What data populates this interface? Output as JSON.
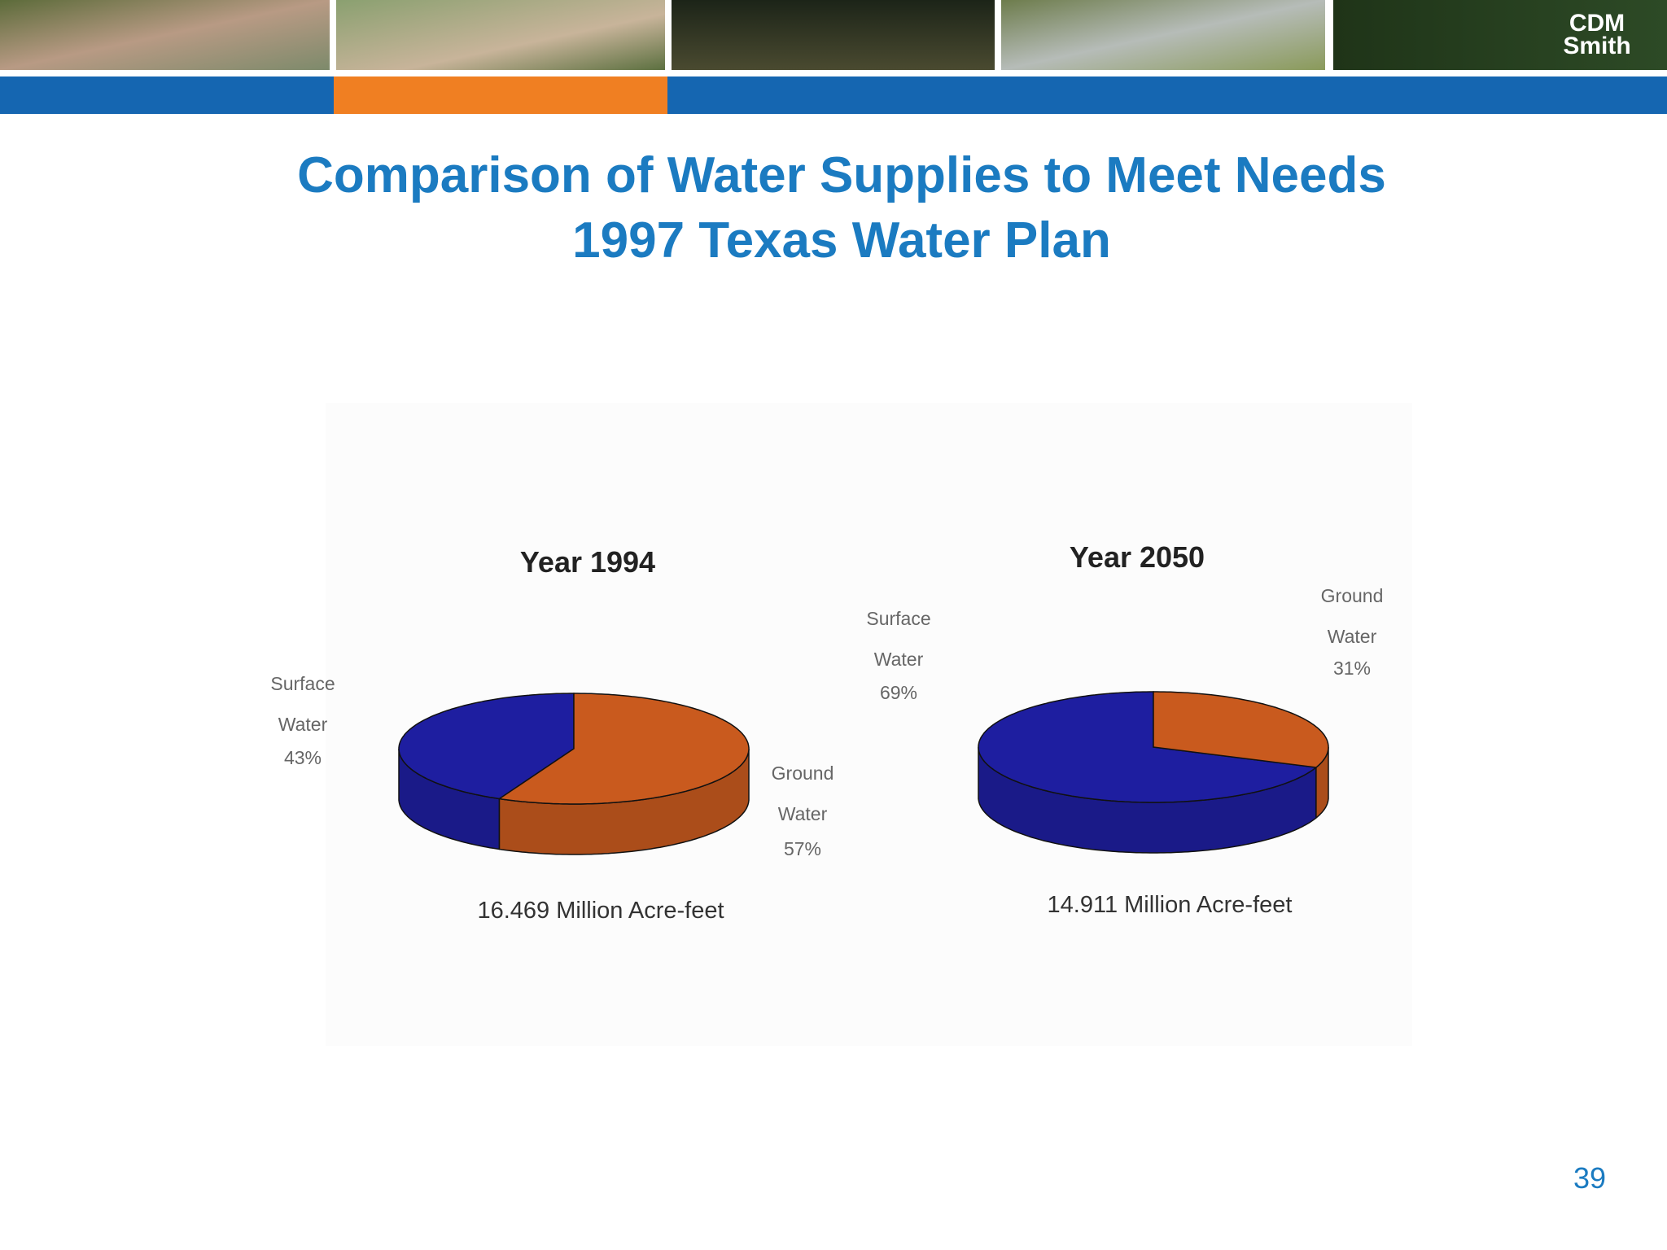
{
  "slide": {
    "title": [
      "Comparison of Water Supplies to Meet Needs",
      "1997 Texas Water Plan"
    ],
    "logo": [
      "CDM",
      "Smith"
    ],
    "page_number": "39"
  },
  "chart_data": [
    {
      "type": "pie",
      "title": "Year 1994",
      "categories": [
        "Surface Water",
        "Ground Water"
      ],
      "values": [
        43,
        57
      ],
      "value_labels": [
        "43%",
        "57%"
      ],
      "colors": [
        "#1e1ea0",
        "#c95a1e"
      ],
      "caption": "16.469 Million Acre-feet"
    },
    {
      "type": "pie",
      "title": "Year 2050",
      "categories": [
        "Surface Water",
        "Ground Water"
      ],
      "values": [
        69,
        31
      ],
      "value_labels": [
        "69%",
        "31%"
      ],
      "colors": [
        "#1e1ea0",
        "#c95a1e"
      ],
      "caption": "14.911 Million Acre-feet"
    }
  ]
}
